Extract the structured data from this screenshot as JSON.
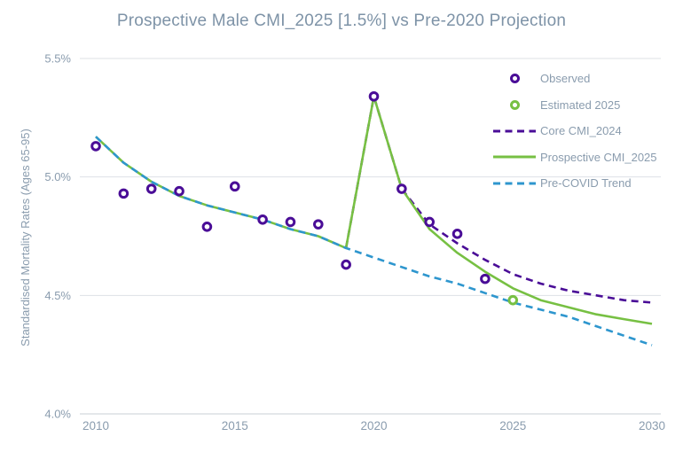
{
  "chart_data": {
    "type": "line",
    "title": "Prospective Male CMI_2025 [1.5%] vs Pre-2020 Projection",
    "xlabel": "",
    "ylabel": "Standardised Mortality Rates (Ages 65-95)",
    "xlim": [
      2010,
      2030
    ],
    "ylim": [
      4.0,
      5.5
    ],
    "grid": "horizontal",
    "legend_position": "inside-top-right",
    "xticks": {
      "values": [
        2010,
        2015,
        2020,
        2025,
        2030
      ],
      "labels": [
        "2010",
        "2015",
        "2020",
        "2025",
        "2030"
      ]
    },
    "yticks": {
      "values": [
        5.5,
        5.0,
        4.5,
        4.0
      ],
      "labels": [
        "5.5%",
        "5.0%",
        "4.5%",
        "4.0%"
      ]
    },
    "series": [
      {
        "name": "Core CMI_2024",
        "type": "line",
        "style": "dashed",
        "color": "#4A0D97",
        "points": [
          [
            2019,
            4.7
          ],
          [
            2020,
            5.34
          ],
          [
            2021,
            4.95
          ],
          [
            2022,
            4.8
          ],
          [
            2023,
            4.72
          ],
          [
            2024,
            4.65
          ],
          [
            2025,
            4.59
          ],
          [
            2026,
            4.55
          ],
          [
            2027,
            4.52
          ],
          [
            2028,
            4.5
          ],
          [
            2029,
            4.48
          ],
          [
            2030,
            4.47
          ]
        ]
      },
      {
        "name": "Prospective CMI_2025",
        "type": "line",
        "style": "solid",
        "color": "#77C043",
        "points": [
          [
            2010,
            5.17
          ],
          [
            2011,
            5.06
          ],
          [
            2012,
            4.98
          ],
          [
            2013,
            4.92
          ],
          [
            2014,
            4.88
          ],
          [
            2015,
            4.85
          ],
          [
            2016,
            4.82
          ],
          [
            2017,
            4.78
          ],
          [
            2018,
            4.75
          ],
          [
            2019,
            4.7
          ],
          [
            2020,
            5.34
          ],
          [
            2021,
            4.95
          ],
          [
            2022,
            4.78
          ],
          [
            2023,
            4.68
          ],
          [
            2024,
            4.6
          ],
          [
            2025,
            4.53
          ],
          [
            2026,
            4.48
          ],
          [
            2027,
            4.45
          ],
          [
            2028,
            4.42
          ],
          [
            2029,
            4.4
          ],
          [
            2030,
            4.38
          ]
        ]
      },
      {
        "name": "Pre-COVID Trend",
        "type": "line",
        "style": "dashed",
        "color": "#2E96CE",
        "points": [
          [
            2010,
            5.17
          ],
          [
            2011,
            5.06
          ],
          [
            2012,
            4.98
          ],
          [
            2013,
            4.92
          ],
          [
            2014,
            4.88
          ],
          [
            2015,
            4.85
          ],
          [
            2016,
            4.82
          ],
          [
            2017,
            4.78
          ],
          [
            2018,
            4.75
          ],
          [
            2019,
            4.7
          ],
          [
            2020,
            4.66
          ],
          [
            2021,
            4.62
          ],
          [
            2022,
            4.58
          ],
          [
            2023,
            4.55
          ],
          [
            2024,
            4.51
          ],
          [
            2025,
            4.47
          ],
          [
            2026,
            4.44
          ],
          [
            2027,
            4.41
          ],
          [
            2028,
            4.37
          ],
          [
            2029,
            4.33
          ],
          [
            2030,
            4.29
          ]
        ]
      },
      {
        "name": "Observed",
        "type": "scatter",
        "marker": "ring",
        "color": "#4A0D97",
        "points": [
          [
            2010,
            5.13
          ],
          [
            2011,
            4.93
          ],
          [
            2012,
            4.95
          ],
          [
            2013,
            4.94
          ],
          [
            2014,
            4.79
          ],
          [
            2015,
            4.96
          ],
          [
            2016,
            4.82
          ],
          [
            2017,
            4.81
          ],
          [
            2018,
            4.8
          ],
          [
            2019,
            4.63
          ],
          [
            2020,
            5.34
          ],
          [
            2021,
            4.95
          ],
          [
            2022,
            4.81
          ],
          [
            2023,
            4.76
          ],
          [
            2024,
            4.57
          ]
        ]
      },
      {
        "name": "Estimated 2025",
        "type": "scatter",
        "marker": "ring",
        "color": "#77C043",
        "points": [
          [
            2025,
            4.48
          ]
        ]
      }
    ],
    "legend": {
      "items": [
        {
          "label": "Observed",
          "swatch": "ring",
          "color": "#4A0D97"
        },
        {
          "label": "Estimated 2025",
          "swatch": "ring",
          "color": "#77C043"
        },
        {
          "label": "Core CMI_2024",
          "swatch": "dashed-line",
          "color": "#4A0D97"
        },
        {
          "label": "Prospective CMI_2025",
          "swatch": "solid-line",
          "color": "#77C043"
        },
        {
          "label": "Pre-COVID Trend",
          "swatch": "dashed-line",
          "color": "#2E96CE"
        }
      ]
    },
    "style": {
      "title_color": "#7E93A7",
      "axis_text_color": "#8A9CAE",
      "gridline_color": "#DDE1E6",
      "axis_line_color": "#C9CFD6",
      "background_color": "#FFFFFF"
    }
  }
}
